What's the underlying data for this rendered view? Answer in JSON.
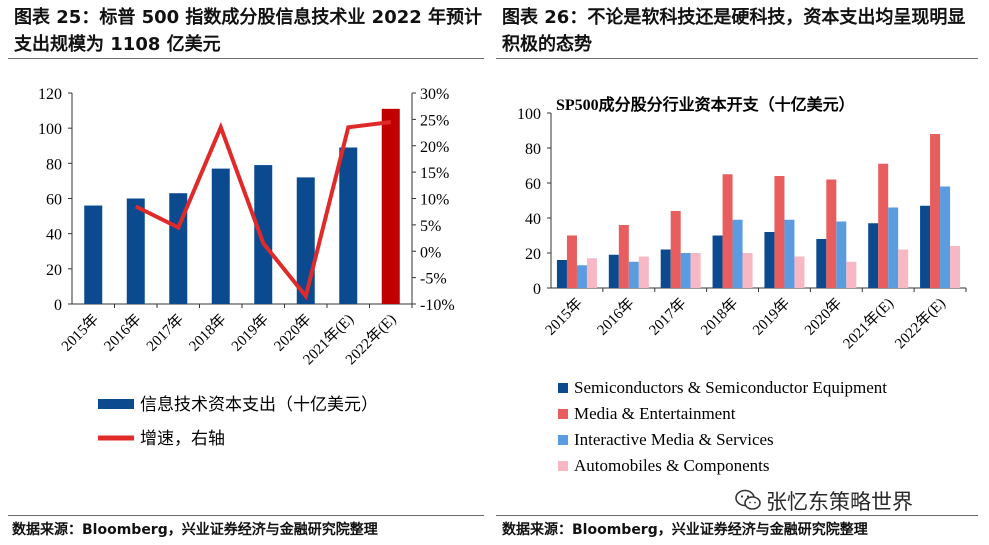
{
  "figures": {
    "left_title": "图表 25：标普 500 指数成分股信息技术业 2022 年预计支出规模为 1108 亿美元",
    "right_title": "图表 26：不论是软科技还是硬科技，资本支出均呈现明显积极的态势",
    "left_source": "数据来源：Bloomberg，兴业证券经济与金融研究院整理",
    "right_source": "数据来源：Bloomberg，兴业证券经济与金融研究院整理",
    "watermark": "张忆东策略世界"
  },
  "chart_data": [
    {
      "type": "bar",
      "categories": [
        "2015年",
        "2016年",
        "2017年",
        "2018年",
        "2019年",
        "2020年",
        "2021年(E)",
        "2022年(E)"
      ],
      "series": [
        {
          "name": "信息技术资本支出（十亿美元）",
          "values": [
            56,
            60,
            63,
            77,
            79,
            72,
            89,
            111
          ],
          "color": "#0b4a8e",
          "highlight_color": "#c00000",
          "highlight_index": 7
        },
        {
          "name": "增速，右轴",
          "type": "line",
          "axis": "right",
          "values": [
            null,
            8.5,
            4.5,
            23.5,
            1.5,
            -8.5,
            23.5,
            24.5
          ],
          "color": "#e02a2a"
        }
      ],
      "ylim": [
        0,
        120
      ],
      "yticks": [
        0,
        20,
        40,
        60,
        80,
        100,
        120
      ],
      "ylim_right": [
        -10,
        30
      ],
      "yticks_right": [
        "-10%",
        "-5%",
        "0%",
        "5%",
        "10%",
        "15%",
        "20%",
        "25%",
        "30%"
      ],
      "legend": [
        "信息技术资本支出（十亿美元）",
        "增速，右轴"
      ],
      "legend_position": "bottom",
      "grid": false
    },
    {
      "type": "bar",
      "title": "SP500成分股分行业资本开支（十亿美元）",
      "categories": [
        "2015年",
        "2016年",
        "2017年",
        "2018年",
        "2019年",
        "2020年",
        "2021年(E)",
        "2022年(E)"
      ],
      "series": [
        {
          "name": "Semiconductors & Semiconductor Equipment",
          "values": [
            16,
            19,
            22,
            30,
            32,
            28,
            37,
            47
          ],
          "color": "#0b4a8e"
        },
        {
          "name": "Media & Entertainment",
          "values": [
            30,
            36,
            44,
            65,
            64,
            62,
            71,
            88
          ],
          "color": "#e85d5d"
        },
        {
          "name": "Interactive Media & Services",
          "values": [
            13,
            15,
            20,
            39,
            39,
            38,
            46,
            58
          ],
          "color": "#5b9be0"
        },
        {
          "name": "Automobiles & Components",
          "values": [
            17,
            18,
            20,
            20,
            18,
            15,
            22,
            24
          ],
          "color": "#f7b8c4"
        }
      ],
      "ylim": [
        0,
        100
      ],
      "yticks": [
        0,
        20,
        40,
        60,
        80,
        100
      ],
      "legend_position": "bottom",
      "grid": false
    }
  ]
}
